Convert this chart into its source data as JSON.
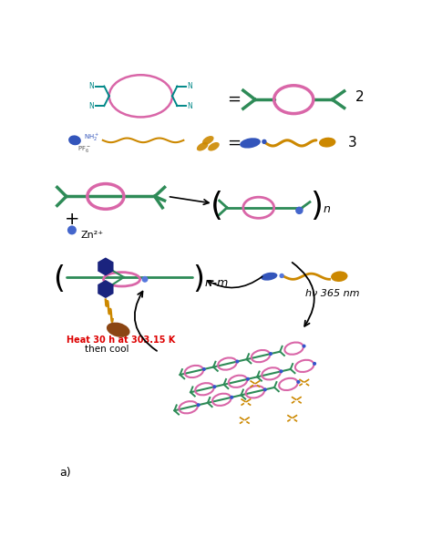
{
  "bg_color": "#ffffff",
  "pink_color": "#d966a8",
  "green_color": "#2e8b57",
  "blue_color": "#3355bb",
  "orange_color": "#cc8800",
  "dark_blue": "#1a237e",
  "brown_color": "#8B4513",
  "red_text": "#dd0000",
  "label2": "2",
  "label3": "3",
  "label_n": "n",
  "label_nm": "n–m",
  "label_hv": "hν 365 nm",
  "label_heat": "Heat 30 h at 303.15 K",
  "label_cool": "then cool",
  "label_zn": "Zn²⁺",
  "label_a": "a)"
}
